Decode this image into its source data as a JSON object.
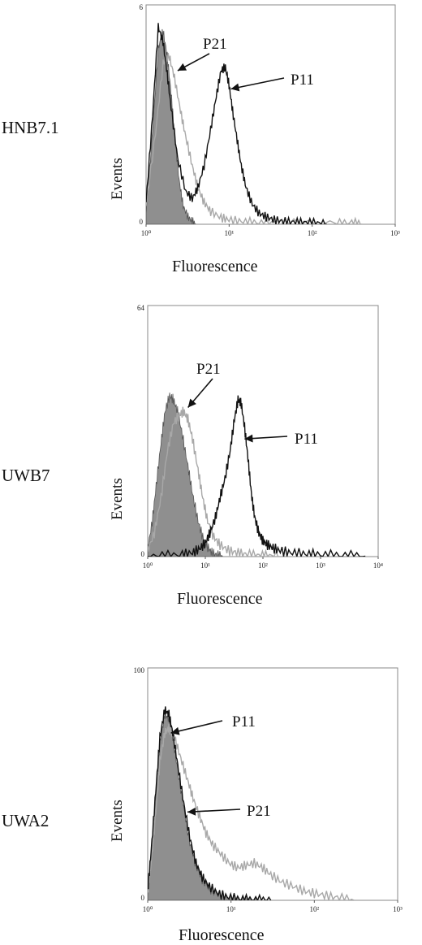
{
  "chart_data": [
    {
      "type": "area",
      "panel_label": "HNB7.1",
      "xlabel": "Fluorescence",
      "ylabel": "Events",
      "xscale": "log",
      "xlim": [
        1,
        1000
      ],
      "ylim": [
        0,
        6
      ],
      "y_tick_labels": [
        "0",
        "6"
      ],
      "x_tick_labels": [
        "10⁰",
        "10¹",
        "10²",
        "10³"
      ],
      "annotations": [
        {
          "text": "P21",
          "arrow_to": {
            "x": 2.4,
            "y": 4.2
          }
        },
        {
          "text": "P11",
          "arrow_to": {
            "x": 10.5,
            "y": 3.7
          }
        }
      ],
      "series": [
        {
          "role": "control",
          "style": "filled",
          "x": [
            1,
            1.2,
            1.4,
            1.6,
            1.8,
            2.0,
            2.2,
            2.5,
            2.8,
            3.2,
            3.6,
            4.0
          ],
          "y": [
            0.3,
            2.6,
            4.8,
            5.3,
            4.6,
            3.6,
            2.5,
            1.2,
            0.5,
            0.2,
            0.08,
            0
          ]
        },
        {
          "role": "P21",
          "style": "gray-line",
          "x": [
            1,
            1.3,
            1.6,
            1.9,
            2.2,
            2.6,
            3.0,
            3.6,
            4.2,
            5.0,
            6.0,
            8.0,
            10,
            14,
            20,
            30,
            60,
            200,
            300,
            400
          ],
          "y": [
            0.5,
            2.5,
            4.4,
            4.6,
            4.0,
            3.1,
            2.4,
            1.6,
            1.0,
            0.6,
            0.35,
            0.18,
            0.12,
            0.08,
            0.05,
            0.03,
            0.02,
            0.02,
            0.05,
            0
          ]
        },
        {
          "role": "P11",
          "style": "black-line",
          "x": [
            1,
            1.2,
            1.4,
            1.6,
            1.8,
            2.0,
            2.4,
            3.0,
            3.6,
            4.2,
            5.0,
            6.0,
            7.0,
            8.0,
            9.0,
            10,
            11,
            12.5,
            14,
            16,
            19,
            23,
            28,
            35,
            45,
            60,
            80,
            110,
            150
          ],
          "y": [
            0.6,
            3.0,
            5.4,
            5.0,
            4.1,
            3.2,
            1.8,
            0.9,
            0.7,
            1.0,
            1.6,
            2.6,
            3.5,
            4.2,
            4.3,
            3.8,
            3.1,
            2.3,
            1.6,
            1.0,
            0.55,
            0.3,
            0.2,
            0.12,
            0.08,
            0.06,
            0.05,
            0.04,
            0
          ]
        }
      ]
    },
    {
      "type": "area",
      "panel_label": "UWB7",
      "xlabel": "Fluorescence",
      "ylabel": "Events",
      "xscale": "log",
      "xlim": [
        1,
        10000
      ],
      "ylim": [
        0,
        64
      ],
      "y_tick_labels": [
        "0",
        "64"
      ],
      "x_tick_labels": [
        "10⁰",
        "10¹",
        "10²",
        "10³",
        "10⁴"
      ],
      "annotations": [
        {
          "text": "P21",
          "arrow_to": {
            "x": 5.0,
            "y": 38
          }
        },
        {
          "text": "P11",
          "arrow_to": {
            "x": 48,
            "y": 30
          }
        }
      ],
      "series": [
        {
          "role": "control",
          "style": "filled",
          "x": [
            1,
            1.2,
            1.4,
            1.7,
            2.0,
            2.4,
            2.8,
            3.3,
            4.0,
            5.0,
            6.0,
            7.5,
            9.0,
            11,
            13,
            16,
            20
          ],
          "y": [
            2,
            9,
            18,
            29,
            37,
            41,
            40,
            37,
            31,
            23,
            16,
            9,
            5,
            2.5,
            1,
            0.4,
            0
          ]
        },
        {
          "role": "P21",
          "style": "gray-line",
          "x": [
            1,
            1.3,
            1.7,
            2.2,
            2.8,
            3.5,
            4.2,
            5.0,
            6.0,
            7.5,
            9.0,
            11,
            14,
            18,
            25,
            35,
            50,
            80,
            120,
            200
          ],
          "y": [
            1.5,
            6,
            15,
            27,
            34,
            36,
            37,
            35,
            30,
            22,
            15,
            9,
            5,
            3,
            1.6,
            1,
            0.6,
            0.3,
            0.2,
            0
          ]
        },
        {
          "role": "P11",
          "style": "black-line",
          "x": [
            1,
            2,
            4,
            6,
            8,
            10,
            12,
            15,
            18,
            22,
            27,
            32,
            37,
            42,
            48,
            55,
            63,
            72,
            85,
            100,
            120,
            150,
            200,
            300,
            500,
            800,
            1500,
            3000,
            6000
          ],
          "y": [
            0,
            0.2,
            0.5,
            1,
            2,
            3.5,
            6,
            10,
            15,
            20,
            27,
            35,
            40,
            39,
            33,
            25,
            16,
            10,
            6,
            4,
            3,
            2.2,
            1.5,
            1,
            0.7,
            0.5,
            0.35,
            0.2,
            0.1
          ]
        }
      ]
    },
    {
      "type": "area",
      "panel_label": "UWA2",
      "xlabel": "Fluorescence",
      "ylabel": "Events",
      "xscale": "log",
      "xlim": [
        1,
        1000
      ],
      "ylim": [
        0,
        100
      ],
      "y_tick_labels": [
        "0",
        "100"
      ],
      "x_tick_labels": [
        "10⁰",
        "10¹",
        "10²",
        "10³"
      ],
      "annotations": [
        {
          "text": "P11",
          "arrow_to": {
            "x": 1.9,
            "y": 72
          }
        },
        {
          "text": "P21",
          "arrow_to": {
            "x": 3.0,
            "y": 38
          }
        }
      ],
      "series": [
        {
          "role": "control",
          "style": "filled",
          "x": [
            1,
            1.1,
            1.25,
            1.4,
            1.6,
            1.8,
            2.0,
            2.3,
            2.7,
            3.2,
            3.8,
            4.5,
            5.5,
            7.0,
            9.0,
            12,
            16,
            22
          ],
          "y": [
            4,
            20,
            45,
            68,
            80,
            78,
            70,
            56,
            40,
            25,
            15,
            9,
            5,
            2.5,
            1.2,
            0.5,
            0.2,
            0
          ]
        },
        {
          "role": "P21",
          "style": "gray-line",
          "x": [
            1,
            1.1,
            1.25,
            1.4,
            1.6,
            1.8,
            2.1,
            2.5,
            3.0,
            3.5,
            4.2,
            5.0,
            6.0,
            7.5,
            9.5,
            12,
            15,
            19,
            24,
            30,
            40,
            55,
            75,
            100,
            140,
            200,
            300
          ],
          "y": [
            3,
            16,
            38,
            60,
            72,
            74,
            70,
            61,
            52,
            44,
            36,
            29,
            24,
            20,
            16,
            14,
            15,
            16,
            14,
            11,
            8,
            6,
            4,
            3,
            2,
            1,
            0
          ]
        },
        {
          "role": "P11",
          "style": "black-line",
          "x": [
            1,
            1.1,
            1.25,
            1.4,
            1.6,
            1.8,
            2.0,
            2.3,
            2.7,
            3.2,
            3.8,
            4.5,
            5.5,
            7.0,
            9.0,
            12,
            16,
            22,
            30
          ],
          "y": [
            4,
            21,
            47,
            70,
            82,
            80,
            72,
            58,
            42,
            27,
            16,
            10,
            6,
            3,
            1.5,
            0.7,
            0.3,
            0.15,
            0
          ]
        }
      ]
    }
  ]
}
